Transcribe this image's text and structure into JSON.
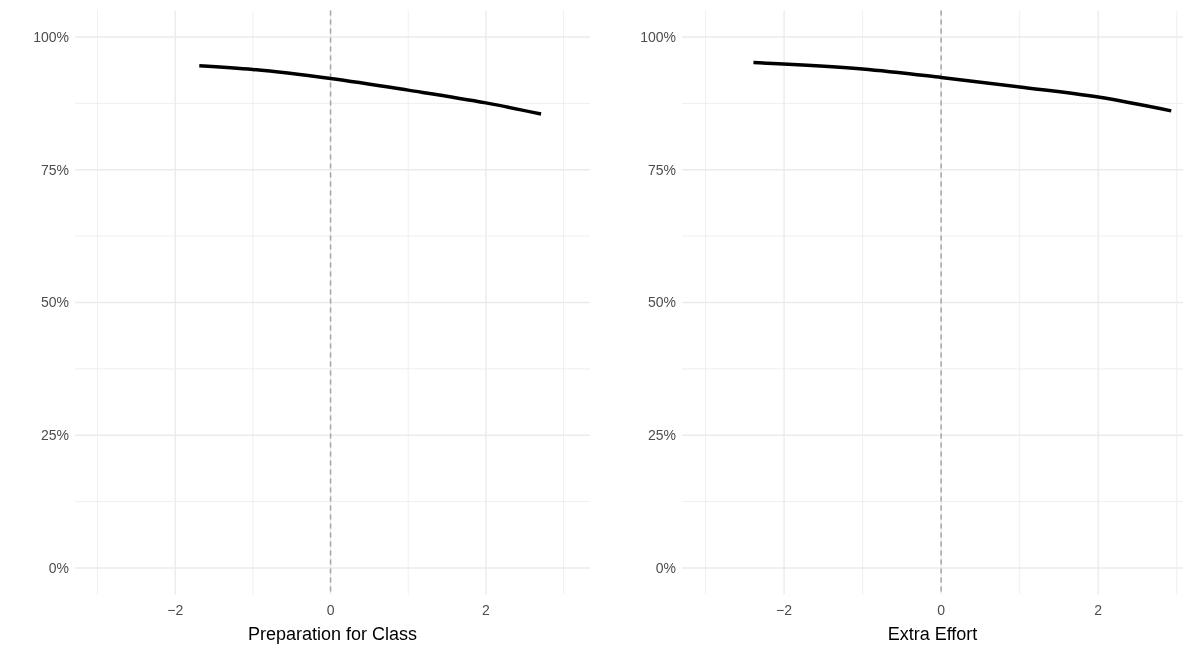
{
  "chart_data": [
    {
      "type": "line",
      "xlabel": "Preparation for Class",
      "x": [
        -1.69,
        -1,
        0,
        1,
        2,
        2.71
      ],
      "series": [
        {
          "color": "#000000",
          "values": [
            94.6,
            93.9,
            92.2,
            90.0,
            87.6,
            85.5
          ]
        }
      ],
      "xlim": [
        -3.29,
        3.34
      ],
      "ylim": [
        -5,
        105
      ],
      "xticks": [
        {
          "value": -3,
          "label": null
        },
        {
          "value": -2,
          "label": "−2"
        },
        {
          "value": -1,
          "label": null
        },
        {
          "value": 0,
          "label": "0"
        },
        {
          "value": 1,
          "label": null
        },
        {
          "value": 2,
          "label": "2"
        },
        {
          "value": 3,
          "label": null
        }
      ],
      "yticks": [
        {
          "value": 0,
          "label": "0%"
        },
        {
          "value": 12.5,
          "label": null
        },
        {
          "value": 25,
          "label": "25%"
        },
        {
          "value": 37.5,
          "label": null
        },
        {
          "value": 50,
          "label": "50%"
        },
        {
          "value": 62.5,
          "label": null
        },
        {
          "value": 75,
          "label": "75%"
        },
        {
          "value": 87.5,
          "label": null
        },
        {
          "value": 100,
          "label": "100%"
        }
      ],
      "grid": true,
      "ref_lines": [
        {
          "axis": "x",
          "value": 0,
          "color": "#a6a6a6",
          "line_style": "dashed"
        }
      ]
    },
    {
      "type": "line",
      "xlabel": "Extra Effort",
      "x": [
        -2.39,
        -1,
        0,
        1,
        2,
        2.93
      ],
      "series": [
        {
          "color": "#000000",
          "values": [
            95.2,
            94.0,
            92.4,
            90.6,
            88.7,
            86.1
          ]
        }
      ],
      "xlim": [
        -3.3,
        3.08
      ],
      "ylim": [
        -5,
        105
      ],
      "xticks": [
        {
          "value": -3,
          "label": null
        },
        {
          "value": -2,
          "label": "−2"
        },
        {
          "value": -1,
          "label": null
        },
        {
          "value": 0,
          "label": "0"
        },
        {
          "value": 1,
          "label": null
        },
        {
          "value": 2,
          "label": "2"
        },
        {
          "value": 3,
          "label": null
        }
      ],
      "yticks": [
        {
          "value": 0,
          "label": "0%"
        },
        {
          "value": 12.5,
          "label": null
        },
        {
          "value": 25,
          "label": "25%"
        },
        {
          "value": 37.5,
          "label": null
        },
        {
          "value": 50,
          "label": "50%"
        },
        {
          "value": 62.5,
          "label": null
        },
        {
          "value": 75,
          "label": "75%"
        },
        {
          "value": 87.5,
          "label": null
        },
        {
          "value": 100,
          "label": "100%"
        }
      ],
      "grid": true,
      "ref_lines": [
        {
          "axis": "x",
          "value": 0,
          "color": "#a6a6a6",
          "line_style": "dashed"
        }
      ]
    }
  ]
}
